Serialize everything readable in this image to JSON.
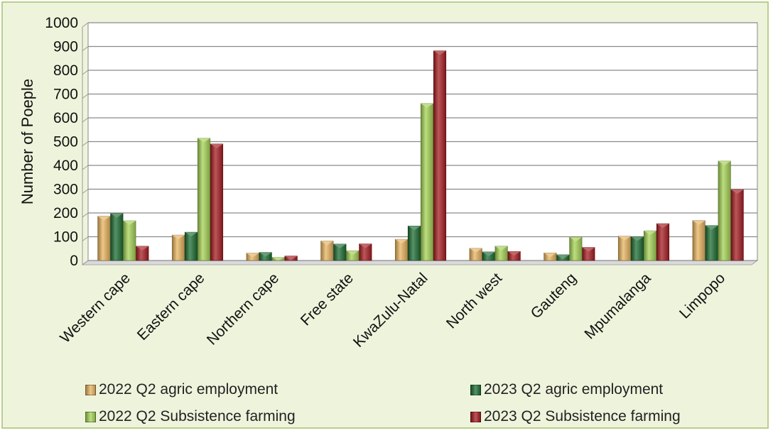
{
  "chart_data": {
    "type": "bar",
    "ylabel": "Number of Poeple",
    "xlabel": "",
    "ylim": [
      0,
      1000
    ],
    "ytick_step": 100,
    "grid": true,
    "legend_position": "bottom",
    "categories": [
      "Western cape",
      "Eastern cape",
      "Northern cape",
      "Free state",
      "KwaZulu-Natal",
      "North west",
      "Gauteng",
      "Mpumalanga",
      "Limpopo"
    ],
    "series": [
      {
        "name": "2022 Q2 agric employment",
        "color": "#e8b460",
        "values": [
          186,
          107,
          31,
          82,
          89,
          51,
          32,
          102,
          168
        ]
      },
      {
        "name": "2023 Q2 agric employment",
        "color": "#1f6e34",
        "values": [
          198,
          119,
          34,
          69,
          145,
          36,
          24,
          100,
          147
        ]
      },
      {
        "name": "2022 Q2 Subsistence farming",
        "color": "#a6d356",
        "values": [
          167,
          514,
          13,
          41,
          660,
          60,
          98,
          125,
          418
        ]
      },
      {
        "name": "2023 Q2 Subsistence farming",
        "color": "#a51d22",
        "values": [
          60,
          490,
          19,
          70,
          882,
          38,
          55,
          155,
          298
        ]
      }
    ]
  }
}
